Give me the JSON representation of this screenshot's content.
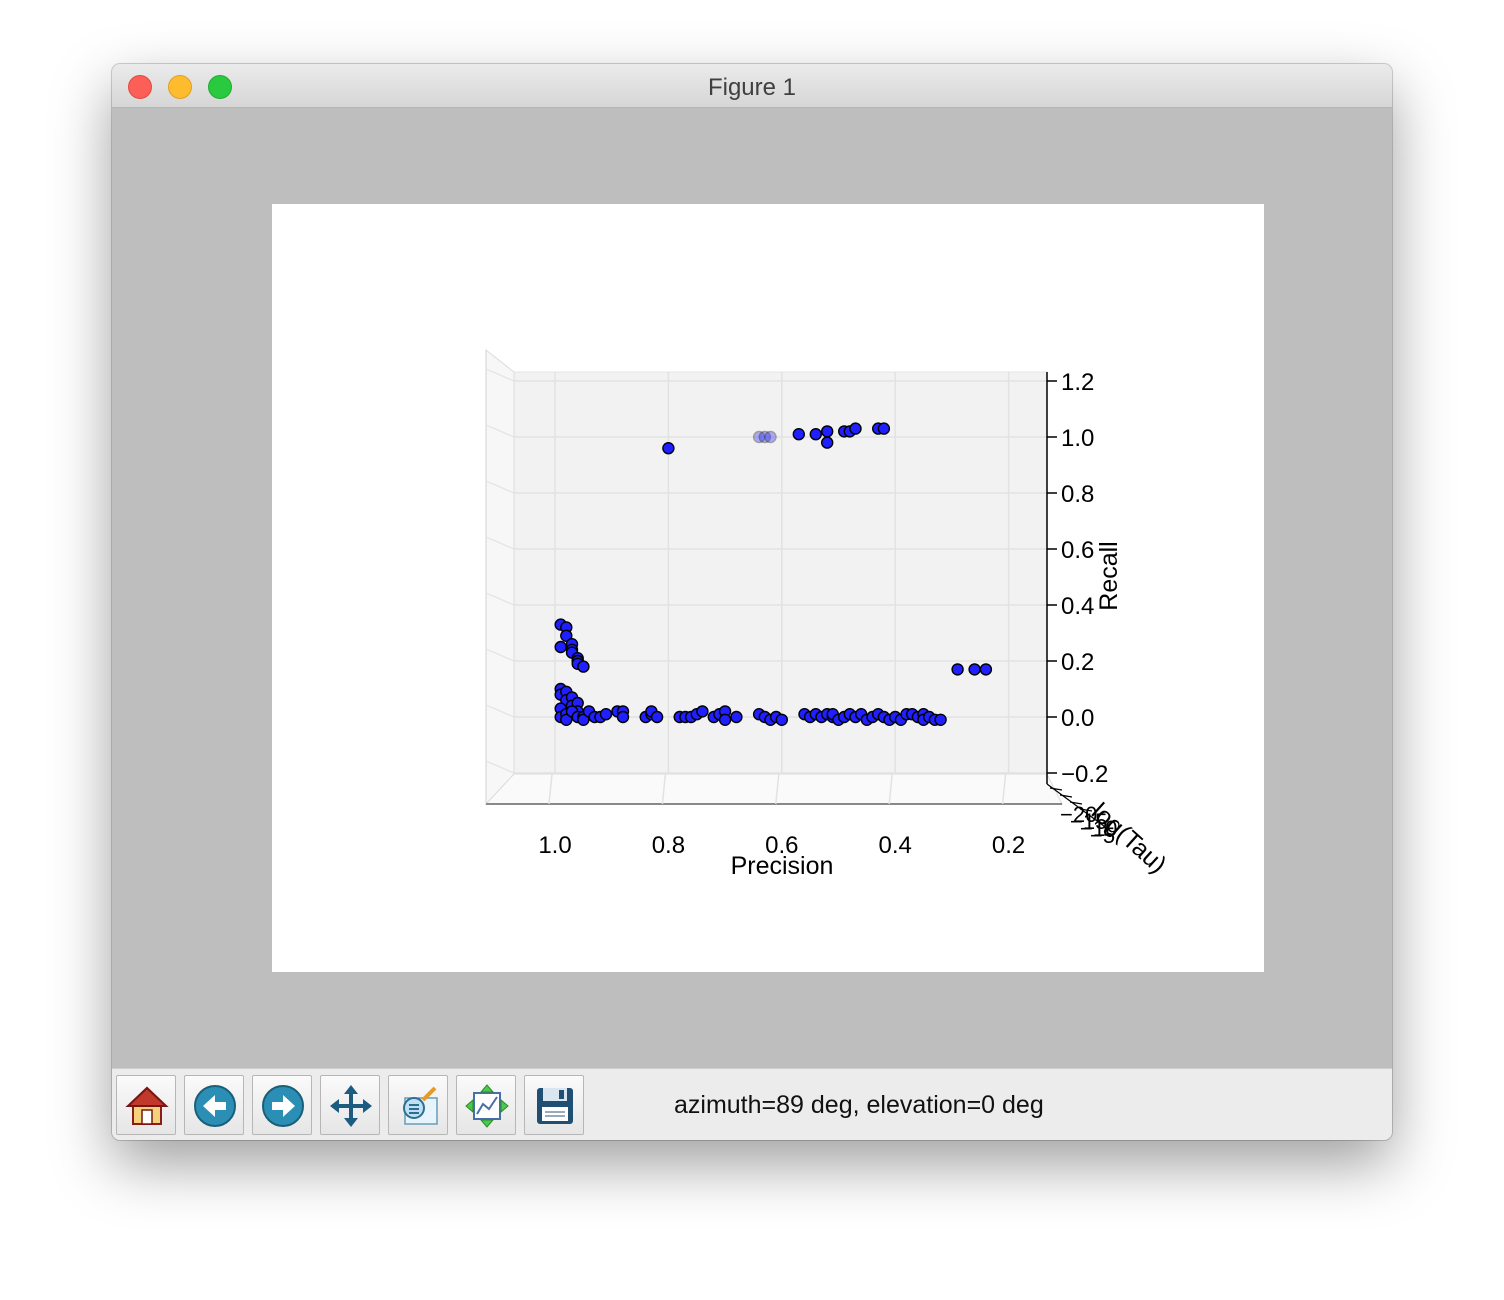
{
  "window": {
    "title": "Figure 1"
  },
  "toolbar": {
    "buttons": [
      {
        "name": "home-button",
        "icon": "home-icon"
      },
      {
        "name": "back-button",
        "icon": "back-arrow-icon"
      },
      {
        "name": "forward-button",
        "icon": "forward-arrow-icon"
      },
      {
        "name": "pan-button",
        "icon": "move-arrows-icon"
      },
      {
        "name": "zoom-button",
        "icon": "zoom-rect-icon"
      },
      {
        "name": "subplots-button",
        "icon": "subplots-config-icon"
      },
      {
        "name": "save-button",
        "icon": "floppy-disk-icon"
      }
    ],
    "status": "azimuth=89 deg, elevation=0 deg"
  },
  "chart_data": {
    "type": "scatter",
    "projection": "3d",
    "view": {
      "azimuth": 89,
      "elevation": 0
    },
    "xlabel": "Precision",
    "ylabel": "Recall",
    "zlabel": "log(Tau)",
    "xlim": [
      1.12,
      0.12
    ],
    "ylim": [
      -0.22,
      1.25
    ],
    "xticks": [
      "1.0",
      "0.8",
      "0.6",
      "0.4",
      "0.2"
    ],
    "yticks": [
      "1.2",
      "1.0",
      "0.8",
      "0.6",
      "0.4",
      "0.2",
      "0.0",
      "−0.2"
    ],
    "zticks": [
      "−20",
      "−15",
      "−10",
      "−5"
    ],
    "grid": true,
    "marker_color": "#1f1fff",
    "marker_edge": "#000000",
    "points": [
      {
        "x": 0.8,
        "y": 0.96
      },
      {
        "x": 0.64,
        "y": 1.0,
        "faded": true
      },
      {
        "x": 0.63,
        "y": 1.0,
        "faded": true
      },
      {
        "x": 0.62,
        "y": 1.0,
        "faded": true
      },
      {
        "x": 0.57,
        "y": 1.01
      },
      {
        "x": 0.54,
        "y": 1.01
      },
      {
        "x": 0.52,
        "y": 0.98
      },
      {
        "x": 0.52,
        "y": 1.02
      },
      {
        "x": 0.49,
        "y": 1.02
      },
      {
        "x": 0.48,
        "y": 1.02
      },
      {
        "x": 0.47,
        "y": 1.03
      },
      {
        "x": 0.43,
        "y": 1.03
      },
      {
        "x": 0.42,
        "y": 1.03
      },
      {
        "x": 0.29,
        "y": 0.17
      },
      {
        "x": 0.26,
        "y": 0.17
      },
      {
        "x": 0.24,
        "y": 0.17
      },
      {
        "x": 0.99,
        "y": 0.33
      },
      {
        "x": 0.98,
        "y": 0.32
      },
      {
        "x": 0.98,
        "y": 0.29
      },
      {
        "x": 0.97,
        "y": 0.26
      },
      {
        "x": 0.97,
        "y": 0.24
      },
      {
        "x": 0.97,
        "y": 0.23
      },
      {
        "x": 0.96,
        "y": 0.21
      },
      {
        "x": 0.96,
        "y": 0.2
      },
      {
        "x": 0.96,
        "y": 0.19
      },
      {
        "x": 0.95,
        "y": 0.18
      },
      {
        "x": 0.99,
        "y": 0.25
      },
      {
        "x": 0.99,
        "y": 0.1
      },
      {
        "x": 0.99,
        "y": 0.08
      },
      {
        "x": 0.98,
        "y": 0.09
      },
      {
        "x": 0.98,
        "y": 0.06
      },
      {
        "x": 0.97,
        "y": 0.07
      },
      {
        "x": 0.97,
        "y": 0.04
      },
      {
        "x": 0.96,
        "y": 0.05
      },
      {
        "x": 0.96,
        "y": 0.02
      },
      {
        "x": 0.99,
        "y": 0.03
      },
      {
        "x": 0.99,
        "y": 0.0
      },
      {
        "x": 0.98,
        "y": 0.01
      },
      {
        "x": 0.98,
        "y": -0.01
      },
      {
        "x": 0.97,
        "y": 0.02
      },
      {
        "x": 0.96,
        "y": 0.0
      },
      {
        "x": 0.95,
        "y": 0.0
      },
      {
        "x": 0.95,
        "y": -0.01
      },
      {
        "x": 0.94,
        "y": 0.02
      },
      {
        "x": 0.93,
        "y": 0.0
      },
      {
        "x": 0.92,
        "y": 0.0
      },
      {
        "x": 0.91,
        "y": 0.01
      },
      {
        "x": 0.89,
        "y": 0.02
      },
      {
        "x": 0.88,
        "y": 0.02
      },
      {
        "x": 0.88,
        "y": 0.0
      },
      {
        "x": 0.84,
        "y": 0.0
      },
      {
        "x": 0.83,
        "y": 0.01
      },
      {
        "x": 0.83,
        "y": 0.02
      },
      {
        "x": 0.82,
        "y": 0.0
      },
      {
        "x": 0.78,
        "y": 0.0
      },
      {
        "x": 0.77,
        "y": 0.0
      },
      {
        "x": 0.76,
        "y": 0.0
      },
      {
        "x": 0.75,
        "y": 0.01
      },
      {
        "x": 0.74,
        "y": 0.02
      },
      {
        "x": 0.72,
        "y": 0.0
      },
      {
        "x": 0.71,
        "y": 0.01
      },
      {
        "x": 0.7,
        "y": 0.02
      },
      {
        "x": 0.7,
        "y": -0.01
      },
      {
        "x": 0.68,
        "y": 0.0
      },
      {
        "x": 0.64,
        "y": 0.01
      },
      {
        "x": 0.63,
        "y": 0.0
      },
      {
        "x": 0.62,
        "y": -0.01
      },
      {
        "x": 0.61,
        "y": 0.0
      },
      {
        "x": 0.6,
        "y": -0.01
      },
      {
        "x": 0.56,
        "y": 0.01
      },
      {
        "x": 0.55,
        "y": 0.0
      },
      {
        "x": 0.54,
        "y": 0.01
      },
      {
        "x": 0.53,
        "y": 0.0
      },
      {
        "x": 0.52,
        "y": 0.01
      },
      {
        "x": 0.51,
        "y": 0.0
      },
      {
        "x": 0.51,
        "y": 0.01
      },
      {
        "x": 0.5,
        "y": -0.01
      },
      {
        "x": 0.49,
        "y": 0.0
      },
      {
        "x": 0.48,
        "y": 0.01
      },
      {
        "x": 0.47,
        "y": 0.0
      },
      {
        "x": 0.46,
        "y": 0.01
      },
      {
        "x": 0.45,
        "y": -0.01
      },
      {
        "x": 0.44,
        "y": 0.0
      },
      {
        "x": 0.43,
        "y": 0.01
      },
      {
        "x": 0.42,
        "y": 0.0
      },
      {
        "x": 0.41,
        "y": -0.01
      },
      {
        "x": 0.4,
        "y": 0.0
      },
      {
        "x": 0.39,
        "y": -0.01
      },
      {
        "x": 0.38,
        "y": 0.01
      },
      {
        "x": 0.37,
        "y": 0.01
      },
      {
        "x": 0.36,
        "y": 0.0
      },
      {
        "x": 0.35,
        "y": 0.01
      },
      {
        "x": 0.35,
        "y": -0.01
      },
      {
        "x": 0.34,
        "y": 0.0
      },
      {
        "x": 0.33,
        "y": -0.01
      },
      {
        "x": 0.32,
        "y": -0.01
      }
    ]
  }
}
